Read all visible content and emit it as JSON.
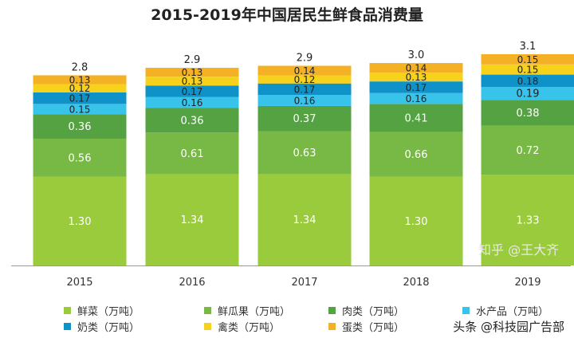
{
  "chart_data": {
    "type": "bar",
    "stacked": true,
    "title": "2015-2019年中国居民生鲜食品消费量",
    "categories": [
      "2015",
      "2016",
      "2017",
      "2018",
      "2019"
    ],
    "totals": [
      "2.8",
      "2.9",
      "2.9",
      "3.0",
      "3.1"
    ],
    "series": [
      {
        "name": "鲜菜（万吨）",
        "color": "#9acb3c",
        "values": [
          1.3,
          1.34,
          1.34,
          1.3,
          1.33
        ],
        "labels": [
          "1.30",
          "1.34",
          "1.34",
          "1.30",
          "1.33"
        ]
      },
      {
        "name": "鲜瓜果（万吨）",
        "color": "#78b946",
        "values": [
          0.56,
          0.61,
          0.63,
          0.66,
          0.72
        ],
        "labels": [
          "0.56",
          "0.61",
          "0.63",
          "0.66",
          "0.72"
        ]
      },
      {
        "name": "肉类（万吨）",
        "color": "#55a243",
        "values": [
          0.36,
          0.36,
          0.37,
          0.41,
          0.38
        ],
        "labels": [
          "0.36",
          "0.36",
          "0.37",
          "0.41",
          "0.38"
        ]
      },
      {
        "name": "水产品（万吨）",
        "color": "#38c3ea",
        "values": [
          0.15,
          0.16,
          0.16,
          0.16,
          0.19
        ],
        "labels": [
          "0.15",
          "0.16",
          "0.16",
          "0.16",
          "0.19"
        ]
      },
      {
        "name": "奶类（万吨）",
        "color": "#0f92c8",
        "values": [
          0.17,
          0.17,
          0.17,
          0.17,
          0.18
        ],
        "labels": [
          "0.17",
          "0.17",
          "0.17",
          "0.17",
          "0.18"
        ]
      },
      {
        "name": "禽类（万吨）",
        "color": "#f6d21d",
        "values": [
          0.12,
          0.13,
          0.12,
          0.13,
          0.15
        ],
        "labels": [
          "0.12",
          "0.13",
          "0.12",
          "0.13",
          "0.15"
        ]
      },
      {
        "name": "蛋类（万吨）",
        "color": "#f4b126",
        "values": [
          0.13,
          0.13,
          0.14,
          0.14,
          0.15
        ],
        "labels": [
          "0.13",
          "0.13",
          "0.14",
          "0.14",
          "0.15"
        ]
      }
    ],
    "legend_position": "bottom",
    "grid": false
  },
  "watermarks": {
    "corner": "头条 @科技园广告部",
    "faint": "知乎 @王大齐"
  }
}
